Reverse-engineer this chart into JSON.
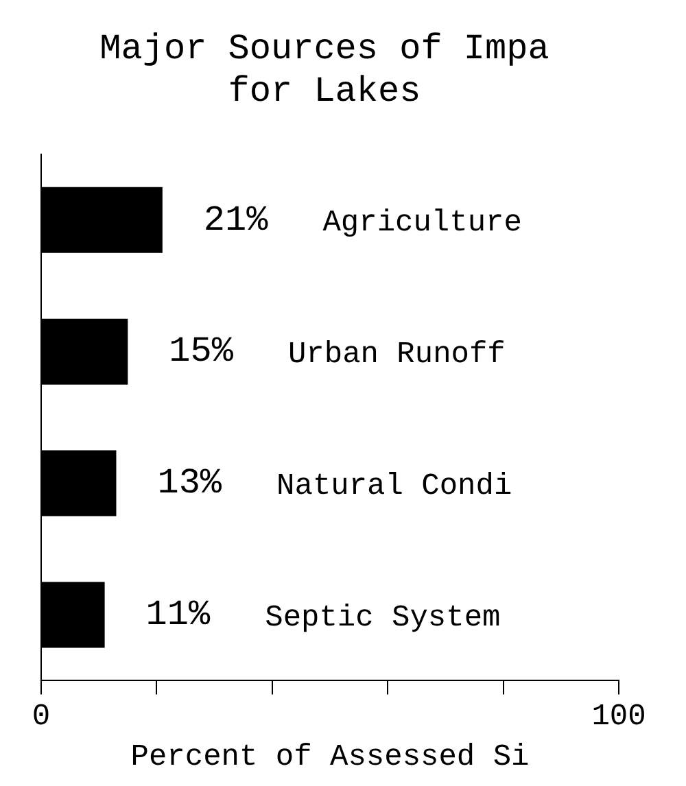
{
  "chart_data": {
    "type": "bar",
    "orientation": "horizontal",
    "title": "Major Sources of Impa\nfor Lakes",
    "xlabel": "Percent of Assessed Si",
    "categories": [
      "Agriculture",
      "Urban Runoff",
      "Natural Condi",
      "Septic System"
    ],
    "values": [
      21,
      15,
      13,
      11
    ],
    "value_labels": [
      "21%",
      "15%",
      "13%",
      "11%"
    ],
    "color": "#000000",
    "xlim": [
      0,
      100
    ],
    "xticks": [
      0,
      {
        "value": 20,
        "label": null
      },
      {
        "value": 40,
        "label": null
      },
      {
        "value": 60,
        "label": null
      },
      {
        "value": 80,
        "label": null
      },
      100
    ],
    "tick_labels": "x",
    "grid": false,
    "legend": false
  }
}
